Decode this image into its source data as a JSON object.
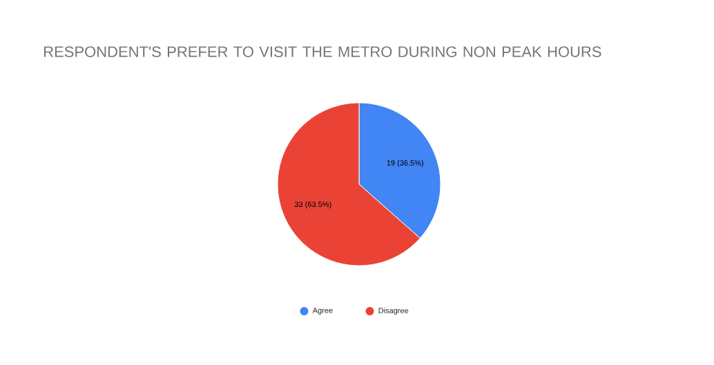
{
  "chart_data": {
    "type": "pie",
    "title": "RESPONDENT'S PREFER TO VISIT THE METRO DURING NON PEAK HOURS",
    "categories": [
      "Agree",
      "Disagree"
    ],
    "values": [
      19,
      33
    ],
    "colors": [
      "#4285f4",
      "#ea4335"
    ],
    "value_labels": [
      "19 (36.5%)",
      "33 (63.5%)"
    ],
    "legend": "bottom"
  }
}
